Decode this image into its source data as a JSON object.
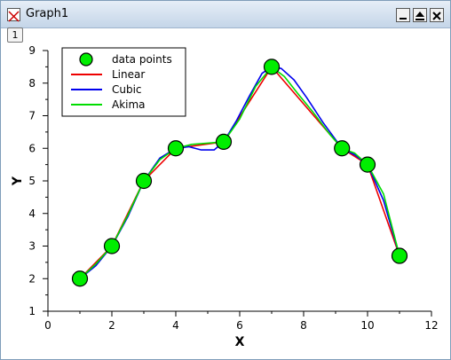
{
  "window": {
    "title": "Graph1",
    "layer_label": "1",
    "icons": [
      "graph-window-icon",
      "minimize-icon",
      "restore-icon",
      "close-icon"
    ]
  },
  "chart_data": {
    "type": "line",
    "title": "",
    "xlabel": "X",
    "ylabel": "Y",
    "xlim": [
      0,
      12
    ],
    "ylim": [
      1,
      9
    ],
    "x_ticks": [
      "0",
      "2",
      "4",
      "6",
      "8",
      "10",
      "12"
    ],
    "y_ticks": [
      "1",
      "2",
      "3",
      "4",
      "5",
      "6",
      "7",
      "8",
      "9"
    ],
    "grid": false,
    "legend_position": "top-left",
    "x": [
      1,
      2,
      3,
      4,
      5.5,
      7,
      9.2,
      10,
      11
    ],
    "series": [
      {
        "name": "data points",
        "kind": "markers",
        "color": "#00ee00",
        "values": [
          2,
          3,
          5,
          6,
          6.2,
          8.5,
          6,
          5.5,
          2.7
        ]
      },
      {
        "name": "Linear",
        "kind": "line",
        "color": "#ee0000",
        "x": [
          1,
          2,
          3,
          4,
          5.5,
          7,
          9.2,
          10,
          11
        ],
        "values": [
          2,
          3,
          5,
          6,
          6.2,
          8.5,
          6,
          5.5,
          2.7
        ]
      },
      {
        "name": "Cubic",
        "kind": "line",
        "color": "#0000ee",
        "x": [
          1,
          1.5,
          2,
          2.5,
          3,
          3.5,
          4,
          4.4,
          4.8,
          5.2,
          5.5,
          5.9,
          6.3,
          6.7,
          7,
          7.3,
          7.7,
          8.1,
          8.6,
          9.2,
          9.6,
          10,
          10.5,
          11
        ],
        "values": [
          2,
          2.4,
          3,
          3.9,
          5,
          5.7,
          6,
          6.05,
          5.95,
          5.95,
          6.2,
          6.85,
          7.6,
          8.3,
          8.5,
          8.45,
          8.1,
          7.55,
          6.8,
          6,
          5.8,
          5.5,
          4.4,
          2.7
        ]
      },
      {
        "name": "Akima",
        "kind": "line",
        "color": "#00dd00",
        "x": [
          1,
          1.5,
          2,
          2.5,
          3,
          3.5,
          4,
          4.5,
          5,
          5.5,
          6,
          6.5,
          7,
          7.4,
          7.8,
          8.3,
          8.8,
          9.2,
          9.6,
          10,
          10.5,
          11
        ],
        "values": [
          2,
          2.45,
          3,
          3.95,
          5,
          5.65,
          6,
          6.12,
          6.16,
          6.2,
          6.9,
          7.9,
          8.5,
          8.2,
          7.7,
          7.1,
          6.45,
          6,
          5.85,
          5.5,
          4.6,
          2.7
        ]
      }
    ]
  }
}
